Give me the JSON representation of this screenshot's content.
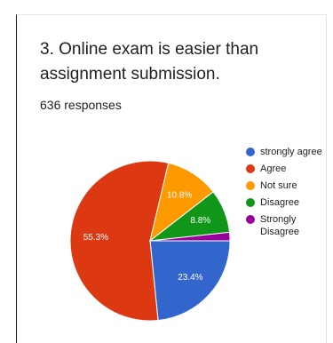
{
  "question": {
    "title": "3. Online exam is easier than assignment submission.",
    "responses": "636 responses"
  },
  "chart_data": {
    "type": "pie",
    "categories": [
      "strongly agree",
      "Agree",
      "Not sure",
      "Disagree",
      "Strongly Disagree"
    ],
    "values": [
      23.4,
      55.3,
      10.8,
      8.8,
      1.7
    ],
    "labels": [
      "23.4%",
      "55.3%",
      "10.8%",
      "8.8%",
      ""
    ],
    "colors": [
      "#3366cc",
      "#dc3912",
      "#ff9900",
      "#109618",
      "#990099"
    ],
    "legend_position": "right"
  }
}
